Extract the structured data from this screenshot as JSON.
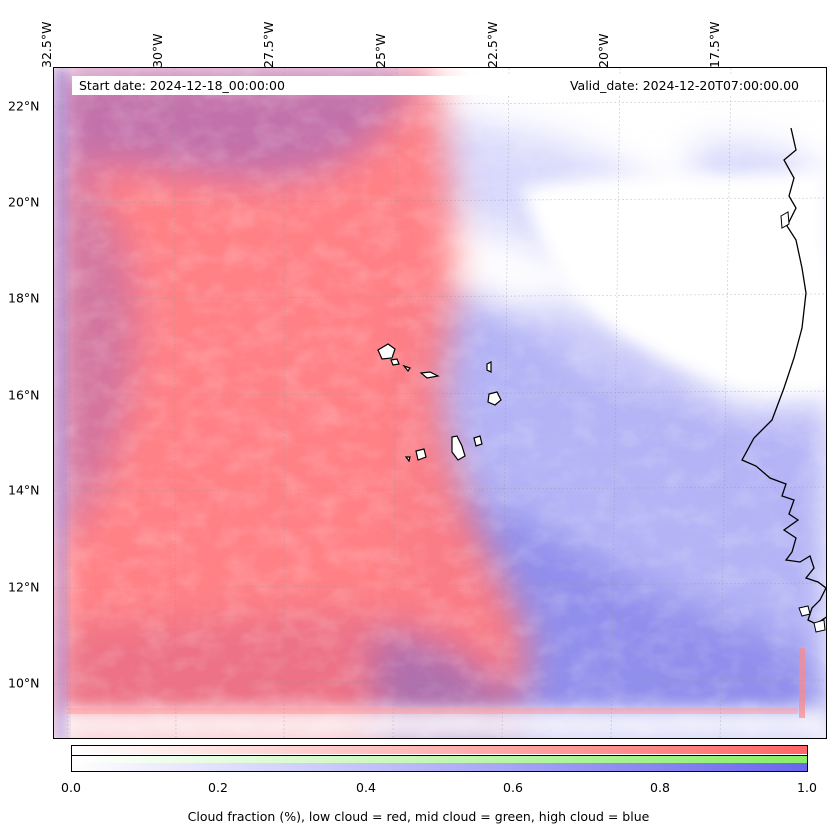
{
  "map": {
    "start_date": "Start date: 2024-12-18_00:00:00",
    "valid_date": "Valid_date: 2024-12-20T07:00:00.00",
    "lon_labels": [
      "32.5°W",
      "30°W",
      "27.5°W",
      "25°W",
      "22.5°W",
      "20°W",
      "17.5°W"
    ],
    "lat_labels": [
      "22°N",
      "20°N",
      "18°N",
      "16°N",
      "14°N",
      "12°N",
      "10°N"
    ],
    "colors": {
      "low_cloud": "#ff6666",
      "mid_cloud": "#88ee66",
      "high_cloud": "#6a66ee",
      "coastline": "#000000"
    }
  },
  "colorbar": {
    "ticks": [
      "0.0",
      "0.2",
      "0.4",
      "0.6",
      "0.8",
      "1.0"
    ],
    "label": "Cloud fraction (%), low cloud = red, mid cloud = green, high cloud = blue"
  }
}
